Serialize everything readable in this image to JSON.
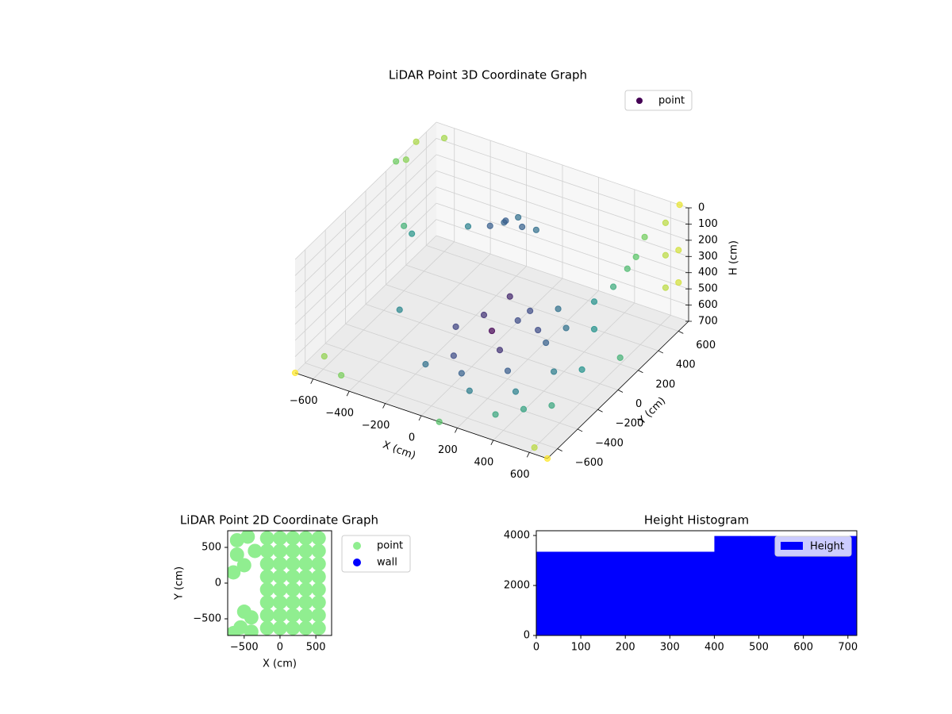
{
  "chart_data": [
    {
      "type": "scatter3d",
      "title": "LiDAR Point 3D Coordinate Graph",
      "xlabel": "X (cm)",
      "ylabel": "Y (cm)",
      "zlabel": "H (cm)",
      "xlim": [
        -700,
        700
      ],
      "ylim": [
        -700,
        700
      ],
      "zlim": [
        0,
        700
      ],
      "xticks": [
        {
          "value": -600,
          "label": "−600"
        },
        {
          "value": -400,
          "label": "−400"
        },
        {
          "value": -200,
          "label": "−200"
        },
        0,
        200,
        400,
        600
      ],
      "yticks": [
        {
          "value": -600,
          "label": "−600"
        },
        {
          "value": -400,
          "label": "−400"
        },
        {
          "value": -200,
          "label": "−200"
        },
        0,
        200,
        400,
        600
      ],
      "zticks": [
        0,
        100,
        200,
        300,
        400,
        500,
        600,
        700
      ],
      "colormap": "viridis",
      "grid": true,
      "legend": "upper right",
      "series": [
        {
          "name": "point",
          "color": "#440154",
          "x": [
            0,
            100,
            200,
            300,
            400,
            200,
            100,
            300,
            400,
            500,
            0,
            -100,
            -200,
            -100,
            500,
            300,
            600,
            200,
            100,
            -200,
            400,
            300,
            400,
            450,
            500,
            520,
            540,
            -100,
            -50,
            0,
            -150,
            -80,
            50,
            -500,
            -600,
            -400,
            -300,
            200,
            100,
            600,
            600,
            600,
            700,
            700,
            650,
            -700,
            -650,
            700,
            -500,
            100,
            600,
            -700,
            -700,
            -600,
            -700
          ],
          "y": [
            0,
            -100,
            -200,
            -300,
            -100,
            100,
            200,
            200,
            300,
            0,
            -300,
            -200,
            0,
            100,
            -300,
            -500,
            200,
            300,
            -400,
            -300,
            -400,
            0,
            300,
            400,
            450,
            500,
            550,
            300,
            350,
            300,
            250,
            280,
            350,
            100,
            200,
            -200,
            300,
            -100,
            0,
            650,
            650,
            650,
            600,
            600,
            700,
            -700,
            -500,
            -700,
            -600,
            -700,
            -650,
            300,
            500,
            600,
            400
          ],
          "z": [
            600,
            620,
            650,
            680,
            640,
            580,
            560,
            590,
            620,
            650,
            680,
            670,
            650,
            600,
            690,
            700,
            660,
            570,
            690,
            700,
            690,
            560,
            450,
            400,
            300,
            250,
            150,
            150,
            130,
            140,
            160,
            120,
            170,
            250,
            300,
            500,
            250,
            400,
            350,
            100,
            300,
            500,
            200,
            400,
            0,
            700,
            700,
            700,
            700,
            700,
            700,
            0,
            0,
            0,
            50
          ]
        }
      ]
    },
    {
      "type": "scatter",
      "title": "LiDAR Point 2D Coordinate Graph",
      "xlabel": "X (cm)",
      "ylabel": "Y (cm)",
      "xlim": [
        -730,
        720
      ],
      "ylim": [
        -733,
        733
      ],
      "xticks": [
        {
          "value": -500,
          "label": "−500"
        },
        0,
        500
      ],
      "yticks": [
        {
          "value": -500,
          "label": "−500"
        },
        0,
        500
      ],
      "legend": "outside right",
      "series": [
        {
          "name": "point",
          "color": "#90ee90",
          "x": [
            -180,
            -180,
            -180,
            -180,
            -180,
            -180,
            -180,
            -180,
            0,
            0,
            0,
            0,
            0,
            0,
            0,
            0,
            180,
            180,
            180,
            180,
            180,
            180,
            180,
            180,
            360,
            360,
            360,
            360,
            360,
            360,
            360,
            360,
            540,
            540,
            540,
            540,
            540,
            540,
            540,
            540,
            -600,
            -450,
            -600,
            -500,
            -650,
            -350,
            -500,
            -400,
            -550,
            -400,
            -650
          ],
          "y": [
            -630,
            -450,
            -270,
            -90,
            90,
            270,
            450,
            630,
            -630,
            -450,
            -270,
            -90,
            90,
            270,
            450,
            630,
            -630,
            -450,
            -270,
            -90,
            90,
            270,
            450,
            630,
            -630,
            -450,
            -270,
            -90,
            90,
            270,
            450,
            630,
            -630,
            -450,
            -270,
            -90,
            90,
            270,
            450,
            630,
            600,
            650,
            400,
            250,
            150,
            450,
            -400,
            -480,
            -620,
            -680,
            -700
          ]
        },
        {
          "name": "wall",
          "color": "#0000ff",
          "x": [],
          "y": []
        }
      ]
    },
    {
      "type": "histogram",
      "title": "Height Histogram",
      "bins": [
        0,
        80,
        160,
        240,
        320,
        400,
        480,
        560,
        640,
        720
      ],
      "values": [
        3350,
        3350,
        3350,
        3350,
        3350,
        3980,
        3980,
        3980,
        3980
      ],
      "xlim": [
        0,
        720
      ],
      "ylim": [
        0,
        4190
      ],
      "xticks": [
        0,
        100,
        200,
        300,
        400,
        500,
        600,
        700
      ],
      "yticks": [
        0,
        2000,
        4000
      ],
      "legend": "upper right",
      "series_name": "Height",
      "color": "#0000ff"
    }
  ]
}
